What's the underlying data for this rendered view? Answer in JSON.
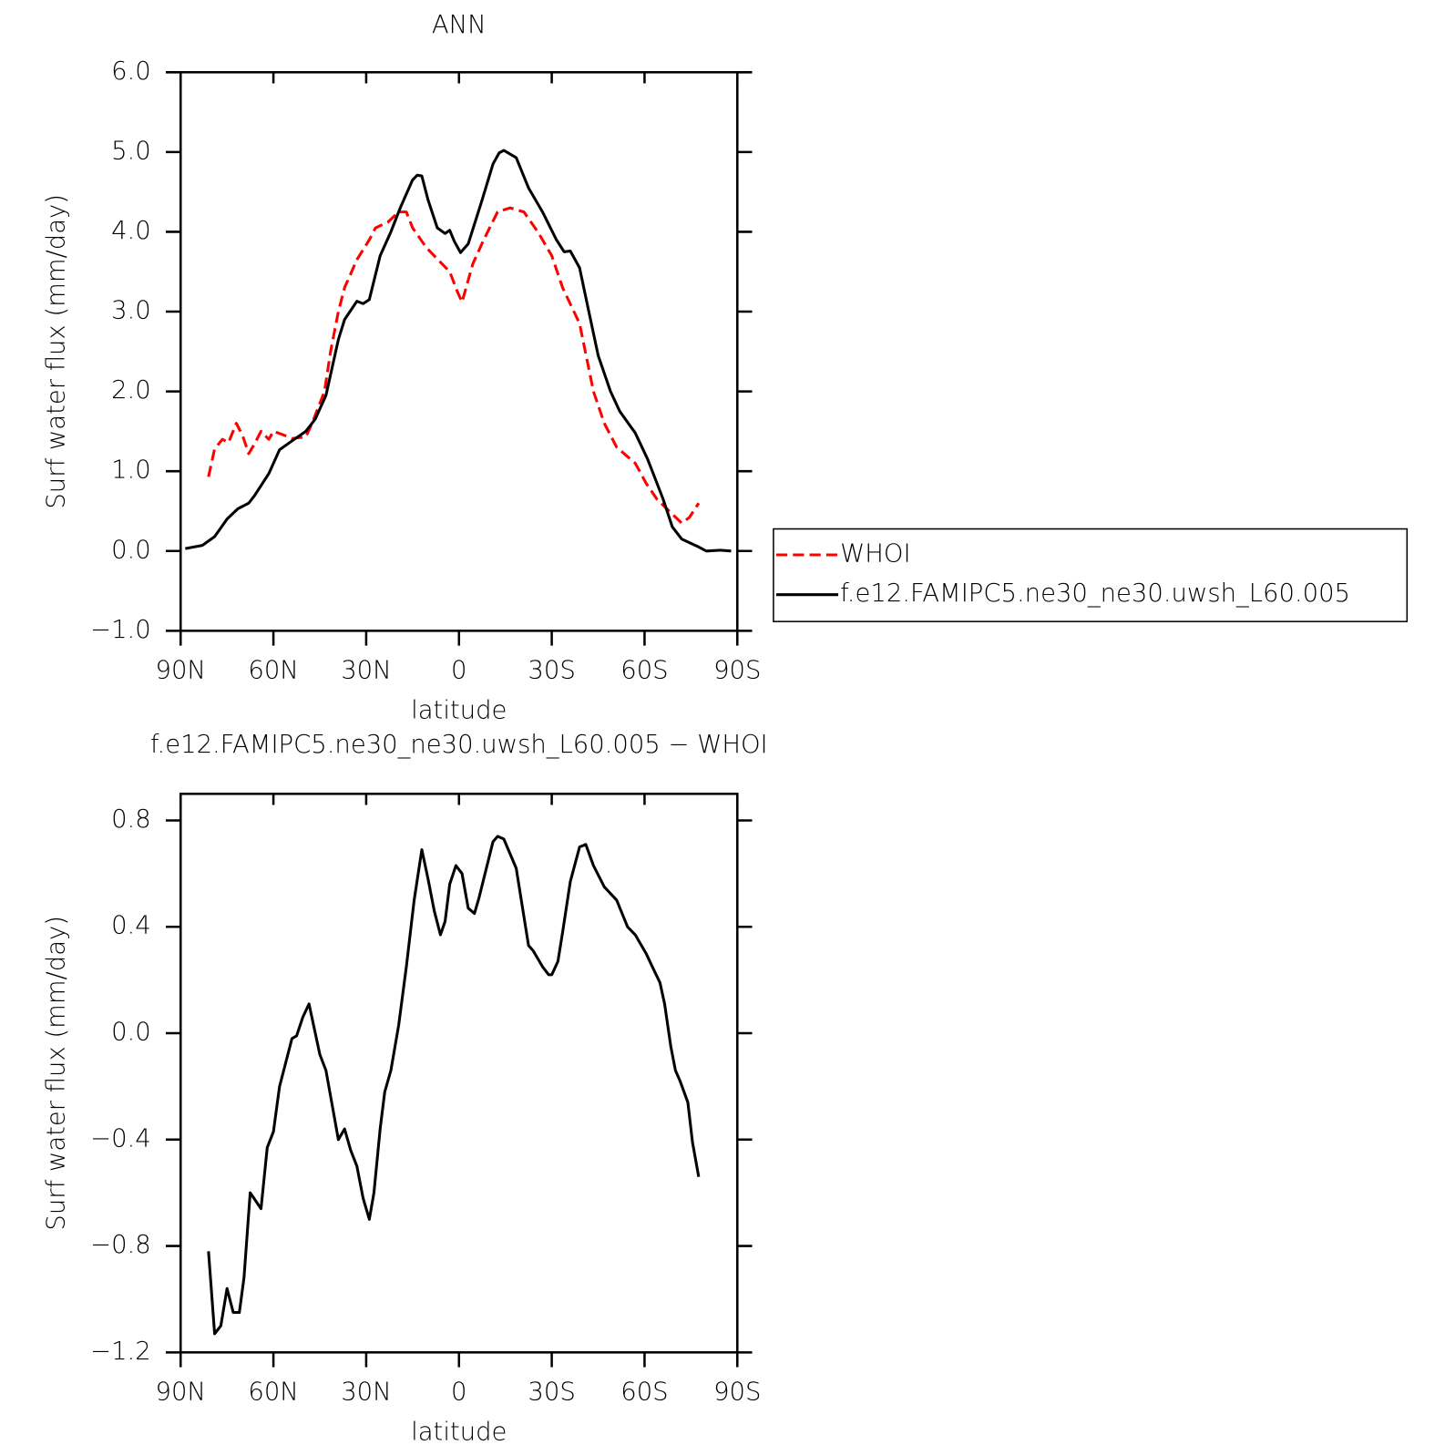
{
  "chart_data": [
    {
      "type": "line",
      "title": "ANN",
      "xlabel": "latitude",
      "ylabel": "Surf water flux (mm/day)",
      "xlim": [
        90,
        -90
      ],
      "xticks": [
        {
          "value": 90,
          "label": "90N"
        },
        {
          "value": 60,
          "label": "60N"
        },
        {
          "value": 30,
          "label": "30N"
        },
        0,
        {
          "value": -30,
          "label": "30S"
        },
        {
          "value": -60,
          "label": "60S"
        },
        {
          "value": -90,
          "label": "90S"
        }
      ],
      "ylim": [
        -1,
        6
      ],
      "yticks": [
        {
          "value": -1,
          "label": "−1.0"
        },
        {
          "value": 0,
          "label": "0.0"
        },
        {
          "value": 1,
          "label": "1.0"
        },
        {
          "value": 2,
          "label": "2.0"
        },
        {
          "value": 3,
          "label": "3.0"
        },
        {
          "value": 4,
          "label": "4.0"
        },
        {
          "value": 5,
          "label": "5.0"
        },
        {
          "value": 6,
          "label": "6.0"
        }
      ],
      "legend": "outside-right",
      "series": [
        {
          "name": "WHOI",
          "color": "#ff0000",
          "linestyle": "dashed",
          "x": [
            81,
            79,
            76.5,
            74.5,
            72,
            70,
            68,
            66,
            64,
            61.5,
            60,
            56.5,
            54,
            49.5,
            47.5,
            43.5,
            41.5,
            39,
            37,
            33,
            29,
            27,
            23,
            19.5,
            17,
            15,
            10.5,
            7.5,
            3,
            0.5,
            -1,
            -4.5,
            -8,
            -12.5,
            -16.5,
            -21,
            -25.5,
            -30,
            -33.5,
            -39,
            -43.5,
            -47,
            -51,
            -57,
            -60.5,
            -64,
            -68,
            -72,
            -74.5,
            -77.5
          ],
          "values": [
            0.93,
            1.28,
            1.4,
            1.36,
            1.6,
            1.45,
            1.22,
            1.35,
            1.5,
            1.4,
            1.5,
            1.45,
            1.41,
            1.43,
            1.6,
            2.0,
            2.5,
            3.0,
            3.3,
            3.65,
            3.9,
            4.05,
            4.12,
            4.25,
            4.25,
            4.05,
            3.8,
            3.68,
            3.5,
            3.25,
            3.12,
            3.6,
            3.9,
            4.25,
            4.3,
            4.25,
            4.0,
            3.7,
            3.3,
            2.85,
            2.0,
            1.6,
            1.3,
            1.1,
            0.85,
            0.65,
            0.5,
            0.35,
            0.42,
            0.6
          ]
        },
        {
          "name": "f.e12.FAMIPC5.ne30_ne30.uwsh_L60.005",
          "color": "#000000",
          "linestyle": "solid",
          "x": [
            88.5,
            83,
            79,
            75,
            71.5,
            68,
            66,
            61.5,
            58,
            54,
            49.5,
            46.5,
            43,
            41,
            39,
            37,
            33,
            31,
            29,
            25.5,
            22,
            19,
            15,
            13.5,
            12,
            10,
            7,
            4.5,
            3,
            1.5,
            -0.5,
            -3,
            -7.5,
            -11,
            -13,
            -14.5,
            -18.5,
            -22.5,
            -27,
            -31.5,
            -34,
            -36,
            -39,
            -42,
            -45,
            -49,
            -52,
            -57,
            -61,
            -66,
            -69,
            -72,
            -77,
            -80,
            -84.5,
            -88
          ],
          "values": [
            0.03,
            0.07,
            0.18,
            0.4,
            0.53,
            0.6,
            0.7,
            0.97,
            1.27,
            1.38,
            1.5,
            1.65,
            1.95,
            2.3,
            2.65,
            2.9,
            3.13,
            3.1,
            3.15,
            3.7,
            4.0,
            4.3,
            4.65,
            4.71,
            4.7,
            4.4,
            4.05,
            3.98,
            4.02,
            3.88,
            3.74,
            3.85,
            4.4,
            4.85,
            4.99,
            5.02,
            4.93,
            4.55,
            4.25,
            3.9,
            3.75,
            3.76,
            3.55,
            3.0,
            2.45,
            2.0,
            1.75,
            1.48,
            1.15,
            0.65,
            0.3,
            0.15,
            0.06,
            0.0,
            0.01,
            0.0
          ]
        }
      ]
    },
    {
      "type": "line",
      "title": "f.e12.FAMIPC5.ne30_ne30.uwsh_L60.005 − WHOI",
      "xlabel": "latitude",
      "ylabel": "Surf water flux (mm/day)",
      "xlim": [
        90,
        -90
      ],
      "xticks": [
        {
          "value": 90,
          "label": "90N"
        },
        {
          "value": 60,
          "label": "60N"
        },
        {
          "value": 30,
          "label": "30N"
        },
        0,
        {
          "value": -30,
          "label": "30S"
        },
        {
          "value": -60,
          "label": "60S"
        },
        {
          "value": -90,
          "label": "90S"
        }
      ],
      "ylim": [
        -1.2,
        0.9
      ],
      "yticks": [
        {
          "value": -1.2,
          "label": "−1.2"
        },
        {
          "value": -0.8,
          "label": "−0.8"
        },
        {
          "value": -0.4,
          "label": "−0.4"
        },
        {
          "value": 0,
          "label": "0.0"
        },
        0.4,
        0.8
      ],
      "color": "#000000",
      "linestyle": "solid",
      "x": [
        81,
        79,
        77,
        75,
        73,
        71,
        69.5,
        67.5,
        64,
        62,
        60,
        58,
        54,
        52.5,
        50.5,
        48.5,
        45,
        43,
        39,
        37,
        35,
        33,
        31,
        29,
        27.5,
        25.5,
        24,
        22,
        19.5,
        17,
        14.5,
        12,
        10,
        8,
        6,
        4.5,
        3,
        1,
        -1,
        -3,
        -5,
        -6.5,
        -11,
        -12.5,
        -14.5,
        -18.5,
        -22.5,
        -24,
        -27,
        -29,
        -30,
        -32,
        -33.5,
        -36,
        -39,
        -41,
        -43.5,
        -47,
        -51,
        -54.5,
        -57,
        -60.5,
        -62.5,
        -65,
        -66.5,
        -68.5,
        -70,
        -71.5,
        -74,
        -75.5,
        -77.5
      ],
      "values": [
        -0.82,
        -1.13,
        -1.1,
        -0.96,
        -1.05,
        -1.05,
        -0.92,
        -0.6,
        -0.66,
        -0.43,
        -0.37,
        -0.2,
        -0.02,
        -0.01,
        0.06,
        0.11,
        -0.08,
        -0.14,
        -0.4,
        -0.36,
        -0.44,
        -0.5,
        -0.62,
        -0.7,
        -0.6,
        -0.36,
        -0.22,
        -0.14,
        0.03,
        0.25,
        0.5,
        0.69,
        0.58,
        0.46,
        0.37,
        0.42,
        0.56,
        0.63,
        0.6,
        0.47,
        0.45,
        0.51,
        0.72,
        0.74,
        0.73,
        0.62,
        0.33,
        0.31,
        0.25,
        0.22,
        0.22,
        0.27,
        0.38,
        0.57,
        0.7,
        0.71,
        0.63,
        0.55,
        0.5,
        0.4,
        0.37,
        0.3,
        0.25,
        0.19,
        0.11,
        -0.05,
        -0.14,
        -0.18,
        -0.26,
        -0.41,
        -0.54
      ]
    }
  ]
}
